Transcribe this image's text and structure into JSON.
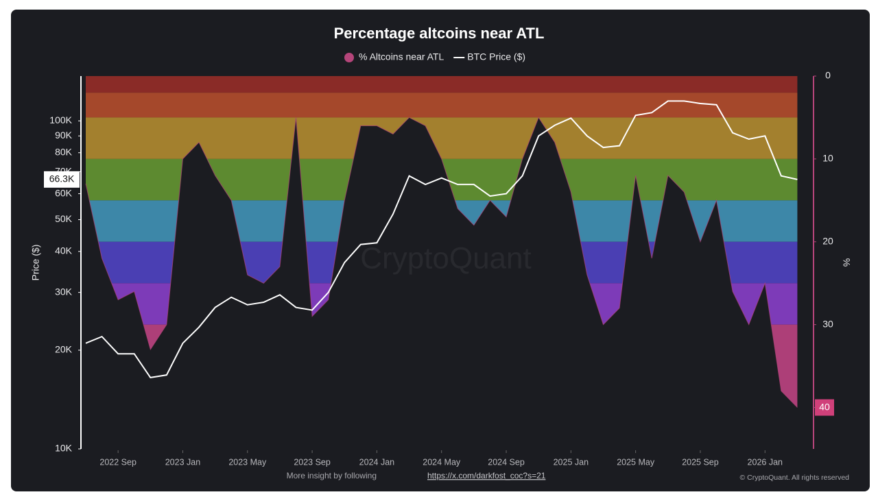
{
  "chart_data": {
    "type": "line",
    "title": "Percentage altcoins near ATL",
    "y_label": "Price ($)",
    "y2_label": "%",
    "watermark": "CryptoQuant",
    "footer": {
      "text": "More insight by following",
      "link": "https://x.com/darkfost_coc?s=21"
    },
    "copyright": "© CryptoQuant. All rights reserved",
    "x": [
      "2022-07",
      "2022-08",
      "2022-09",
      "2022-10",
      "2022-11",
      "2022-12",
      "2023-01",
      "2023-02",
      "2023-03",
      "2023-04",
      "2023-05",
      "2023-06",
      "2023-07",
      "2023-08",
      "2023-09",
      "2023-10",
      "2023-11",
      "2023-12",
      "2024-01",
      "2024-02",
      "2024-03",
      "2024-04",
      "2024-05",
      "2024-06",
      "2024-07",
      "2024-08",
      "2024-09",
      "2024-10",
      "2024-11",
      "2024-12",
      "2025-01",
      "2025-02",
      "2025-03",
      "2025-04",
      "2025-05",
      "2025-06",
      "2025-07",
      "2025-08",
      "2025-09",
      "2025-10",
      "2025-11",
      "2025-12",
      "2026-01",
      "2026-02",
      "2026-03"
    ],
    "xlim": [
      "2022-07",
      "2026-04"
    ],
    "xticks": [
      {
        "value": "2022-09",
        "label": "2022 Sep"
      },
      {
        "value": "2023-01",
        "label": "2023 Jan"
      },
      {
        "value": "2023-05",
        "label": "2023 May"
      },
      {
        "value": "2023-09",
        "label": "2023 Sep"
      },
      {
        "value": "2024-01",
        "label": "2024 Jan"
      },
      {
        "value": "2024-05",
        "label": "2024 May"
      },
      {
        "value": "2024-09",
        "label": "2024 Sep"
      },
      {
        "value": "2025-01",
        "label": "2025 Jan"
      },
      {
        "value": "2025-05",
        "label": "2025 May"
      },
      {
        "value": "2025-09",
        "label": "2025 Sep"
      },
      {
        "value": "2026-01",
        "label": "2026 Jan"
      }
    ],
    "y_log": true,
    "ylim": [
      10000,
      137000
    ],
    "yticks": [
      {
        "value": 10000,
        "label": "10K"
      },
      {
        "value": 20000,
        "label": "20K"
      },
      {
        "value": 30000,
        "label": "30K"
      },
      {
        "value": 40000,
        "label": "40K"
      },
      {
        "value": 50000,
        "label": "50K"
      },
      {
        "value": 60000,
        "label": "60K"
      },
      {
        "value": 70000,
        "label": "70K"
      },
      {
        "value": 80000,
        "label": "80K"
      },
      {
        "value": 90000,
        "label": "90K"
      },
      {
        "value": 100000,
        "label": "100K"
      }
    ],
    "y2lim": [
      0,
      45
    ],
    "y2_inverted": true,
    "y2ticks": [
      0,
      10,
      20,
      30,
      40
    ],
    "price_marker": {
      "value": 66300,
      "label": "66.3K"
    },
    "percent_marker": 40,
    "bands": [
      {
        "from": 0,
        "to": 2,
        "color": "#8a2b27"
      },
      {
        "from": 2,
        "to": 5,
        "color": "#a5482b"
      },
      {
        "from": 5,
        "to": 10,
        "color": "#a3802e"
      },
      {
        "from": 10,
        "to": 15,
        "color": "#5d8a30"
      },
      {
        "from": 15,
        "to": 20,
        "color": "#3d87a8"
      },
      {
        "from": 20,
        "to": 25,
        "color": "#4a3fb3"
      },
      {
        "from": 25,
        "to": 30,
        "color": "#7d3bb8"
      },
      {
        "from": 30,
        "to": 40,
        "color": "#ad3f78"
      },
      {
        "from": 40,
        "to": 45,
        "color": "#c23d6a"
      }
    ],
    "series": [
      {
        "name": "% Altcoins near ATL",
        "color": "#b5457a",
        "axis": "y2",
        "values": [
          13,
          22,
          27,
          26,
          33,
          30,
          10,
          8,
          12,
          15,
          24,
          25,
          23,
          5,
          29,
          27,
          15,
          6,
          6,
          7,
          5,
          6,
          10,
          16,
          18,
          15,
          17,
          10,
          5,
          8,
          14,
          24,
          30,
          28,
          12,
          22,
          12,
          14,
          20,
          15,
          26,
          30,
          25,
          38,
          40
        ]
      },
      {
        "name": "BTC Price ($)",
        "color": "#ffffff",
        "axis": "y",
        "values": [
          21000,
          22000,
          19500,
          19500,
          16500,
          16800,
          21000,
          23500,
          27000,
          29000,
          27500,
          28000,
          29500,
          27000,
          26500,
          30000,
          37000,
          42000,
          42500,
          52000,
          68000,
          64000,
          67000,
          64000,
          64000,
          59000,
          60000,
          68000,
          90000,
          97000,
          102000,
          90000,
          83000,
          84000,
          104000,
          106000,
          115000,
          115000,
          113000,
          112000,
          92000,
          88000,
          90000,
          68000,
          66300
        ]
      }
    ]
  }
}
